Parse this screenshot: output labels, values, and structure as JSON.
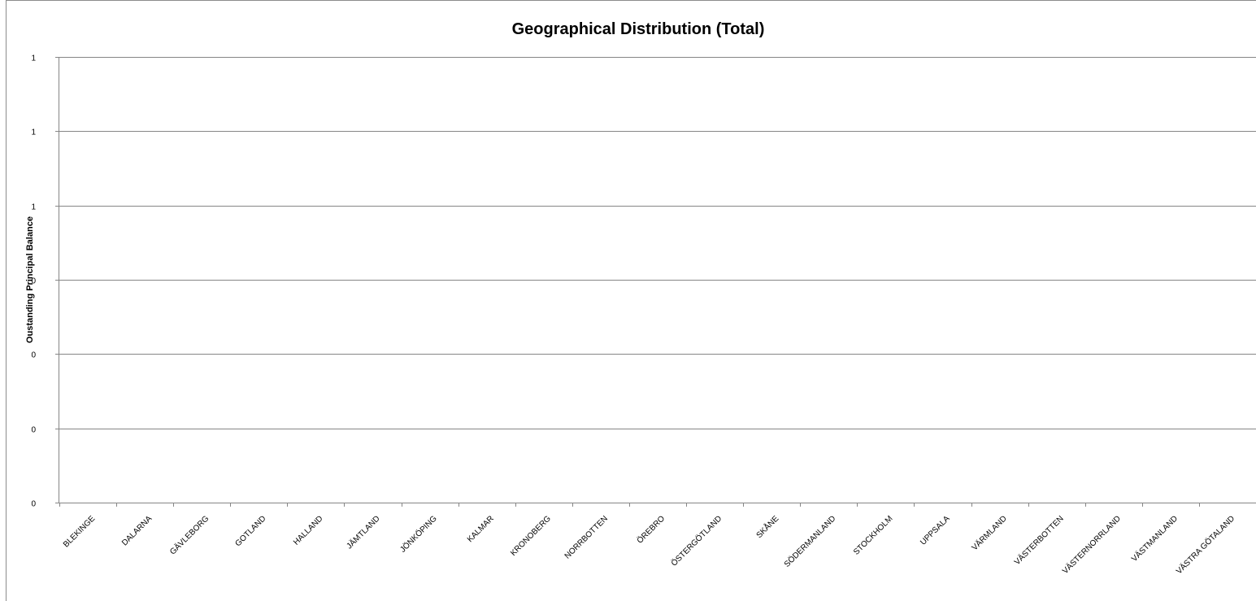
{
  "chart_data": {
    "type": "bar",
    "title": "Geographical Distribution (Total)",
    "xlabel": "",
    "ylabel": "Oustanding Principal Balance",
    "categories": [
      "BLEKINGE",
      "DALARNA",
      "GÄVLEBORG",
      "GOTLAND",
      "HALLAND",
      "JÄMTLAND",
      "JÖNKÖPING",
      "KALMAR",
      "KRONOBERG",
      "NORRBOTTEN",
      "ÖREBRO",
      "ÖSTERGÖTLAND",
      "SKÅNE",
      "SÖDERMANLAND",
      "STOCKHOLM",
      "UPPSALA",
      "VÄRMLAND",
      "VÄSTERBOTTEN",
      "VÄSTERNORRLAND",
      "VÄSTMANLAND",
      "VÄSTRA GÖTALAND"
    ],
    "values": [
      0,
      0,
      0,
      0,
      0,
      0,
      0,
      0,
      0,
      0,
      0,
      0,
      0,
      0,
      0,
      0,
      0,
      0,
      0,
      0,
      0
    ],
    "y_tick_labels": [
      "0",
      "0",
      "0",
      "0",
      "1",
      "1",
      "1"
    ],
    "ylim": [
      0,
      1.2
    ],
    "grid": true,
    "legend": "none",
    "colors": {
      "gridline": "#868686",
      "background": "#ffffff"
    }
  }
}
